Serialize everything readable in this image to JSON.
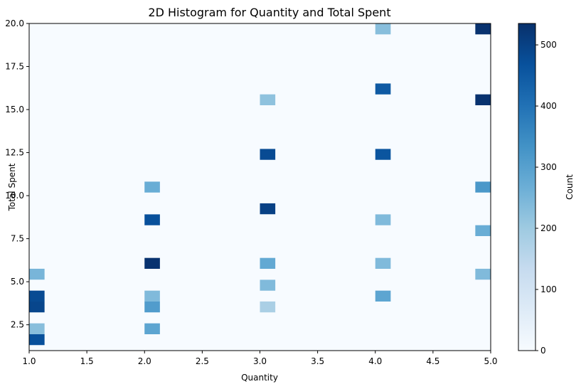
{
  "chart_data": {
    "type": "heatmap",
    "title": "2D Histogram for Quantity and Total Spent",
    "xlabel": "Quantity",
    "ylabel": "Total Spent",
    "xlim": [
      1.0,
      5.0
    ],
    "ylim": [
      1.0,
      20.0
    ],
    "x_bins": 30,
    "y_bins": 30,
    "xticks": [
      "1.0",
      "1.5",
      "2.0",
      "2.5",
      "3.0",
      "3.5",
      "4.0",
      "4.5",
      "5.0"
    ],
    "xtick_values": [
      1.0,
      1.5,
      2.0,
      2.5,
      3.0,
      3.5,
      4.0,
      4.5,
      5.0
    ],
    "yticks": [
      "2.5",
      "5.0",
      "7.5",
      "10.0",
      "12.5",
      "15.0",
      "17.5",
      "20.0"
    ],
    "ytick_values": [
      2.5,
      5.0,
      7.5,
      10.0,
      12.5,
      15.0,
      17.5,
      20.0
    ],
    "colorbar": {
      "label": "Count",
      "range": [
        0,
        535
      ],
      "ticks": [
        "0",
        "100",
        "200",
        "300",
        "400",
        "500"
      ],
      "tick_values": [
        0,
        100,
        200,
        300,
        400,
        500
      ],
      "colormap": "Blues"
    },
    "cells": [
      {
        "x": 1.0,
        "y": 1.32,
        "count": 470
      },
      {
        "x": 1.0,
        "y": 1.95,
        "count": 230
      },
      {
        "x": 1.0,
        "y": 3.22,
        "count": 490
      },
      {
        "x": 1.0,
        "y": 3.85,
        "count": 480
      },
      {
        "x": 1.0,
        "y": 5.12,
        "count": 250
      },
      {
        "x": 2.0,
        "y": 1.95,
        "count": 290
      },
      {
        "x": 2.0,
        "y": 3.22,
        "count": 310
      },
      {
        "x": 2.0,
        "y": 3.85,
        "count": 240
      },
      {
        "x": 2.0,
        "y": 5.75,
        "count": 530
      },
      {
        "x": 2.0,
        "y": 8.28,
        "count": 470
      },
      {
        "x": 2.0,
        "y": 10.18,
        "count": 270
      },
      {
        "x": 3.0,
        "y": 3.22,
        "count": 180
      },
      {
        "x": 3.0,
        "y": 4.48,
        "count": 240
      },
      {
        "x": 3.0,
        "y": 5.75,
        "count": 280
      },
      {
        "x": 3.0,
        "y": 8.92,
        "count": 500
      },
      {
        "x": 3.0,
        "y": 12.08,
        "count": 480
      },
      {
        "x": 3.0,
        "y": 15.25,
        "count": 220
      },
      {
        "x": 4.0,
        "y": 3.85,
        "count": 290
      },
      {
        "x": 4.0,
        "y": 5.75,
        "count": 240
      },
      {
        "x": 4.0,
        "y": 8.28,
        "count": 240
      },
      {
        "x": 4.0,
        "y": 12.08,
        "count": 460
      },
      {
        "x": 4.0,
        "y": 15.88,
        "count": 450
      },
      {
        "x": 4.0,
        "y": 19.68,
        "count": 230
      },
      {
        "x": 5.0,
        "y": 5.12,
        "count": 240
      },
      {
        "x": 5.0,
        "y": 7.65,
        "count": 270
      },
      {
        "x": 5.0,
        "y": 10.18,
        "count": 320
      },
      {
        "x": 5.0,
        "y": 15.25,
        "count": 530
      },
      {
        "x": 5.0,
        "y": 19.68,
        "count": 530
      }
    ]
  }
}
